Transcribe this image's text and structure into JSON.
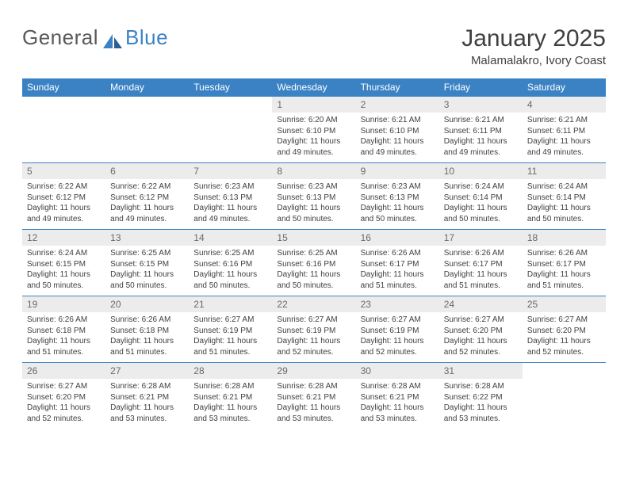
{
  "brand": {
    "general": "General",
    "blue": "Blue"
  },
  "header": {
    "title": "January 2025",
    "location": "Malamalakro, Ivory Coast"
  },
  "colors": {
    "accent": "#3b82c4",
    "text": "#404040",
    "daybg": "#ececec",
    "daytext": "#6a6a6a"
  },
  "dayNames": [
    "Sunday",
    "Monday",
    "Tuesday",
    "Wednesday",
    "Thursday",
    "Friday",
    "Saturday"
  ],
  "weeks": [
    [
      null,
      null,
      null,
      {
        "n": "1",
        "sr": "6:20 AM",
        "ss": "6:10 PM",
        "dl": "11 hours and 49 minutes."
      },
      {
        "n": "2",
        "sr": "6:21 AM",
        "ss": "6:10 PM",
        "dl": "11 hours and 49 minutes."
      },
      {
        "n": "3",
        "sr": "6:21 AM",
        "ss": "6:11 PM",
        "dl": "11 hours and 49 minutes."
      },
      {
        "n": "4",
        "sr": "6:21 AM",
        "ss": "6:11 PM",
        "dl": "11 hours and 49 minutes."
      }
    ],
    [
      {
        "n": "5",
        "sr": "6:22 AM",
        "ss": "6:12 PM",
        "dl": "11 hours and 49 minutes."
      },
      {
        "n": "6",
        "sr": "6:22 AM",
        "ss": "6:12 PM",
        "dl": "11 hours and 49 minutes."
      },
      {
        "n": "7",
        "sr": "6:23 AM",
        "ss": "6:13 PM",
        "dl": "11 hours and 49 minutes."
      },
      {
        "n": "8",
        "sr": "6:23 AM",
        "ss": "6:13 PM",
        "dl": "11 hours and 50 minutes."
      },
      {
        "n": "9",
        "sr": "6:23 AM",
        "ss": "6:13 PM",
        "dl": "11 hours and 50 minutes."
      },
      {
        "n": "10",
        "sr": "6:24 AM",
        "ss": "6:14 PM",
        "dl": "11 hours and 50 minutes."
      },
      {
        "n": "11",
        "sr": "6:24 AM",
        "ss": "6:14 PM",
        "dl": "11 hours and 50 minutes."
      }
    ],
    [
      {
        "n": "12",
        "sr": "6:24 AM",
        "ss": "6:15 PM",
        "dl": "11 hours and 50 minutes."
      },
      {
        "n": "13",
        "sr": "6:25 AM",
        "ss": "6:15 PM",
        "dl": "11 hours and 50 minutes."
      },
      {
        "n": "14",
        "sr": "6:25 AM",
        "ss": "6:16 PM",
        "dl": "11 hours and 50 minutes."
      },
      {
        "n": "15",
        "sr": "6:25 AM",
        "ss": "6:16 PM",
        "dl": "11 hours and 50 minutes."
      },
      {
        "n": "16",
        "sr": "6:26 AM",
        "ss": "6:17 PM",
        "dl": "11 hours and 51 minutes."
      },
      {
        "n": "17",
        "sr": "6:26 AM",
        "ss": "6:17 PM",
        "dl": "11 hours and 51 minutes."
      },
      {
        "n": "18",
        "sr": "6:26 AM",
        "ss": "6:17 PM",
        "dl": "11 hours and 51 minutes."
      }
    ],
    [
      {
        "n": "19",
        "sr": "6:26 AM",
        "ss": "6:18 PM",
        "dl": "11 hours and 51 minutes."
      },
      {
        "n": "20",
        "sr": "6:26 AM",
        "ss": "6:18 PM",
        "dl": "11 hours and 51 minutes."
      },
      {
        "n": "21",
        "sr": "6:27 AM",
        "ss": "6:19 PM",
        "dl": "11 hours and 51 minutes."
      },
      {
        "n": "22",
        "sr": "6:27 AM",
        "ss": "6:19 PM",
        "dl": "11 hours and 52 minutes."
      },
      {
        "n": "23",
        "sr": "6:27 AM",
        "ss": "6:19 PM",
        "dl": "11 hours and 52 minutes."
      },
      {
        "n": "24",
        "sr": "6:27 AM",
        "ss": "6:20 PM",
        "dl": "11 hours and 52 minutes."
      },
      {
        "n": "25",
        "sr": "6:27 AM",
        "ss": "6:20 PM",
        "dl": "11 hours and 52 minutes."
      }
    ],
    [
      {
        "n": "26",
        "sr": "6:27 AM",
        "ss": "6:20 PM",
        "dl": "11 hours and 52 minutes."
      },
      {
        "n": "27",
        "sr": "6:28 AM",
        "ss": "6:21 PM",
        "dl": "11 hours and 53 minutes."
      },
      {
        "n": "28",
        "sr": "6:28 AM",
        "ss": "6:21 PM",
        "dl": "11 hours and 53 minutes."
      },
      {
        "n": "29",
        "sr": "6:28 AM",
        "ss": "6:21 PM",
        "dl": "11 hours and 53 minutes."
      },
      {
        "n": "30",
        "sr": "6:28 AM",
        "ss": "6:21 PM",
        "dl": "11 hours and 53 minutes."
      },
      {
        "n": "31",
        "sr": "6:28 AM",
        "ss": "6:22 PM",
        "dl": "11 hours and 53 minutes."
      },
      null
    ]
  ],
  "labels": {
    "sunrise": "Sunrise:",
    "sunset": "Sunset:",
    "daylight": "Daylight:"
  }
}
